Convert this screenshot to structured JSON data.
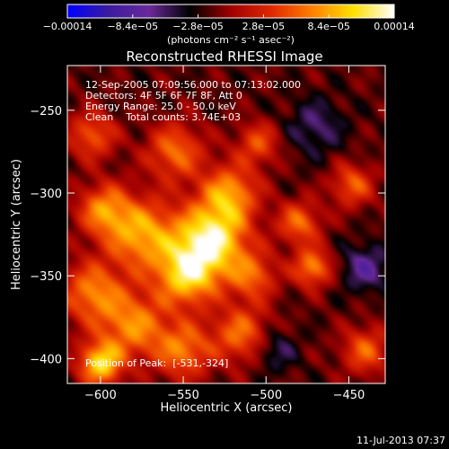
{
  "chart_data": {
    "type": "heatmap",
    "title": "Reconstructed RHESSI Image",
    "xlabel": "Heliocentric X (arcsec)",
    "ylabel": "Heliocentric Y (arcsec)",
    "xlim": [
      -620,
      -428
    ],
    "ylim": [
      -415,
      -223
    ],
    "x_ticks": [
      -600,
      -550,
      -500,
      -450
    ],
    "y_ticks": [
      -250,
      -300,
      -350,
      -400
    ],
    "x_tick_labels": [
      "−600",
      "−550",
      "−500",
      "−450"
    ],
    "y_tick_labels": [
      "−250",
      "−300",
      "−350",
      "−400"
    ],
    "colorbar": {
      "range": [
        -0.00014,
        0.00014
      ],
      "ticks": [
        -0.00014,
        -8.4e-05,
        -2.8e-05,
        2.8e-05,
        8.4e-05,
        0.00014
      ],
      "tick_labels": [
        "−0.00014",
        "−8.4e−05",
        "−2.8e−05",
        "2.8e−05",
        "8.4e−05",
        "0.00014"
      ],
      "unit_label": "(photons cm⁻² s⁻¹ asec⁻²)",
      "colormap": [
        "#0000ff",
        "#3a1aa0",
        "#6a2a9a",
        "#000000",
        "#a00000",
        "#e02800",
        "#ff8000",
        "#ffe000",
        "#ffffff"
      ]
    },
    "annotations": [
      "12-Sep-2005 07:09:56.000 to 07:13:02.000",
      "Detectors: 4F 5F 6F 7F 8F, Att 0",
      "Energy Range: 25.0 - 50.0 keV",
      "Clean    Total counts: 3.74E+03",
      "Position of Peak:  [-531,-324]"
    ],
    "peak": [
      -531,
      -324
    ],
    "intensity_blobs": [
      {
        "x": -533,
        "y": -328,
        "amp": 1.0,
        "sigma": 15
      },
      {
        "x": -548,
        "y": -350,
        "amp": 0.8,
        "sigma": 13
      },
      {
        "x": -522,
        "y": -300,
        "amp": 0.65,
        "sigma": 12
      },
      {
        "x": -575,
        "y": -325,
        "amp": 0.72,
        "sigma": 15
      },
      {
        "x": -598,
        "y": -310,
        "amp": 0.6,
        "sigma": 11
      },
      {
        "x": -605,
        "y": -360,
        "amp": 0.6,
        "sigma": 13
      },
      {
        "x": -580,
        "y": -380,
        "amp": 0.62,
        "sigma": 14
      },
      {
        "x": -600,
        "y": -403,
        "amp": 0.88,
        "sigma": 9
      },
      {
        "x": -550,
        "y": -395,
        "amp": 0.58,
        "sigma": 12
      },
      {
        "x": -515,
        "y": -385,
        "amp": 0.55,
        "sigma": 12
      },
      {
        "x": -555,
        "y": -275,
        "amp": 0.55,
        "sigma": 12
      },
      {
        "x": -480,
        "y": -318,
        "amp": 0.55,
        "sigma": 9
      },
      {
        "x": -472,
        "y": -345,
        "amp": 0.65,
        "sigma": 8
      },
      {
        "x": -448,
        "y": -295,
        "amp": 0.5,
        "sigma": 9
      },
      {
        "x": -605,
        "y": -265,
        "amp": 0.5,
        "sigma": 10
      },
      {
        "x": -508,
        "y": -350,
        "amp": 0.5,
        "sigma": 10
      },
      {
        "x": -440,
        "y": -395,
        "amp": 0.5,
        "sigma": 10
      },
      {
        "x": -505,
        "y": -270,
        "amp": 0.45,
        "sigma": 9
      },
      {
        "x": -440,
        "y": -345,
        "amp": -0.4,
        "sigma": 10
      },
      {
        "x": -470,
        "y": -260,
        "amp": -0.3,
        "sigma": 12
      },
      {
        "x": -495,
        "y": -395,
        "amp": -0.3,
        "sigma": 9
      }
    ],
    "background_level": -0.12
  },
  "footer": {
    "timestamp": "11-Jul-2013 07:37"
  }
}
